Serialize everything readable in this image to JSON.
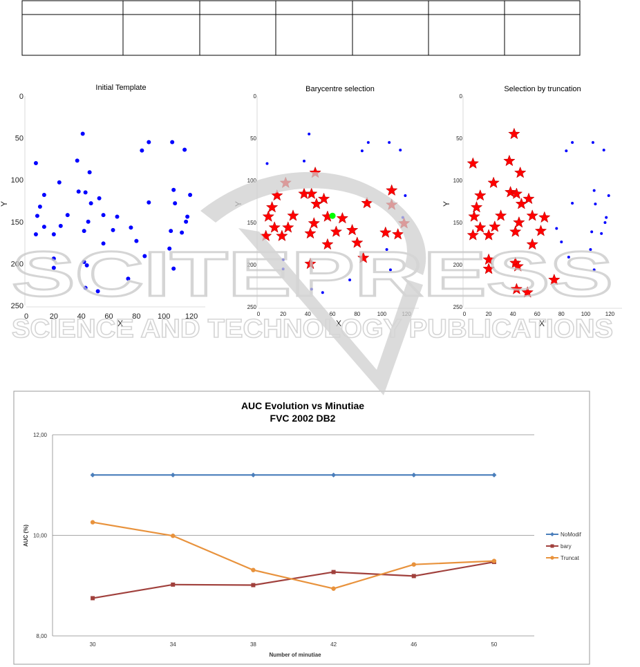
{
  "colors": {
    "blue": "#0000ff",
    "red": "#ff0000",
    "green": "#00ff00",
    "nomodif": "#4a7ebb",
    "bary": "#a0403c",
    "truncat": "#e8923c",
    "grid": "#888888",
    "watermark": "#c8c8c8"
  },
  "watermark": {
    "main": "SCITEPRESS",
    "sub": "SCIENCE AND TECHNOLOGY PUBLICATIONS"
  },
  "top_table": {
    "columns": 7,
    "rows": 2
  },
  "chart_data": [
    {
      "type": "scatter",
      "title": "Initial Template",
      "xlabel": "X",
      "ylabel": "Y",
      "xlim": [
        0,
        130
      ],
      "ylim": [
        0,
        250
      ],
      "y_inverted": true,
      "xticks": [
        0,
        20,
        40,
        60,
        80,
        100,
        120
      ],
      "yticks": [
        0,
        50,
        100,
        150,
        200,
        250
      ],
      "series": [
        {
          "name": "minutiae",
          "marker": "dot",
          "color": "#0000ff",
          "points": [
            [
              7,
              80
            ],
            [
              41,
              45
            ],
            [
              89,
              55
            ],
            [
              106,
              55
            ],
            [
              84,
              65
            ],
            [
              115,
              64
            ],
            [
              37,
              77
            ],
            [
              24,
              103
            ],
            [
              46,
              91
            ],
            [
              107,
              112
            ],
            [
              13,
              118
            ],
            [
              38,
              114
            ],
            [
              43,
              115
            ],
            [
              53,
              122
            ],
            [
              119,
              118
            ],
            [
              10,
              132
            ],
            [
              47,
              128
            ],
            [
              89,
              127
            ],
            [
              108,
              128
            ],
            [
              30,
              142
            ],
            [
              56,
              142
            ],
            [
              66,
              144
            ],
            [
              117,
              144
            ],
            [
              8,
              143
            ],
            [
              25,
              155
            ],
            [
              13,
              156
            ],
            [
              42,
              161
            ],
            [
              45,
              150
            ],
            [
              63,
              160
            ],
            [
              76,
              157
            ],
            [
              116,
              150
            ],
            [
              105,
              161
            ],
            [
              7,
              165
            ],
            [
              20,
              165
            ],
            [
              56,
              176
            ],
            [
              80,
              173
            ],
            [
              113,
              163
            ],
            [
              104,
              182
            ],
            [
              86,
              191
            ],
            [
              20,
              194
            ],
            [
              42,
              198
            ],
            [
              44,
              202
            ],
            [
              20,
              205
            ],
            [
              107,
              206
            ],
            [
              74,
              218
            ],
            [
              43,
              229
            ],
            [
              52,
              233
            ]
          ]
        }
      ]
    },
    {
      "type": "scatter",
      "title": "Barycentre selection",
      "xlabel": "X",
      "ylabel": "Y",
      "xlim": [
        0,
        130
      ],
      "ylim": [
        0,
        250
      ],
      "y_inverted": true,
      "xticks": [
        0,
        20,
        40,
        60,
        80,
        100,
        120
      ],
      "yticks": [
        0,
        50,
        100,
        150,
        200,
        250
      ],
      "series": [
        {
          "name": "selected",
          "marker": "star",
          "color": "#ff0000",
          "points": [
            [
              22,
              103
            ],
            [
              46,
              91
            ],
            [
              37,
              116
            ],
            [
              43,
              116
            ],
            [
              15,
              118
            ],
            [
              53,
              122
            ],
            [
              108,
              112
            ],
            [
              88,
              127
            ],
            [
              108,
              129
            ],
            [
              11,
              132
            ],
            [
              47,
              128
            ],
            [
              8,
              143
            ],
            [
              28,
              142
            ],
            [
              56,
              143
            ],
            [
              68,
              145
            ],
            [
              45,
              151
            ],
            [
              118,
              151
            ],
            [
              13,
              156
            ],
            [
              24,
              156
            ],
            [
              63,
              161
            ],
            [
              76,
              159
            ],
            [
              42,
              163
            ],
            [
              103,
              162
            ],
            [
              113,
              164
            ],
            [
              6,
              166
            ],
            [
              19,
              166
            ],
            [
              56,
              176
            ],
            [
              80,
              174
            ],
            [
              85,
              192
            ],
            [
              42,
              199
            ]
          ]
        },
        {
          "name": "discarded",
          "marker": "dot",
          "color": "#0000ff",
          "points": [
            [
              7,
              80
            ],
            [
              41,
              45
            ],
            [
              89,
              55
            ],
            [
              106,
              55
            ],
            [
              84,
              65
            ],
            [
              115,
              64
            ],
            [
              37,
              77
            ],
            [
              119,
              118
            ],
            [
              117,
              144
            ],
            [
              104,
              182
            ],
            [
              20,
              194
            ],
            [
              20,
              205
            ],
            [
              107,
              206
            ],
            [
              74,
              218
            ],
            [
              43,
              229
            ],
            [
              52,
              233
            ]
          ]
        },
        {
          "name": "barycentre",
          "marker": "dot",
          "color": "#00ff00",
          "points": [
            [
              60,
              142
            ]
          ]
        }
      ]
    },
    {
      "type": "scatter",
      "title": "Selection by truncation",
      "xlabel": "X",
      "ylabel": "Y",
      "xlim": [
        0,
        130
      ],
      "ylim": [
        0,
        250
      ],
      "y_inverted": true,
      "xticks": [
        0,
        20,
        40,
        60,
        80,
        100,
        120
      ],
      "yticks": [
        0,
        50,
        100,
        150,
        200,
        250
      ],
      "series": [
        {
          "name": "selected",
          "marker": "star",
          "color": "#ff0000",
          "points": [
            [
              41,
              45
            ],
            [
              7,
              80
            ],
            [
              37,
              77
            ],
            [
              46,
              91
            ],
            [
              24,
              103
            ],
            [
              13,
              118
            ],
            [
              38,
              114
            ],
            [
              43,
              116
            ],
            [
              53,
              122
            ],
            [
              10,
              132
            ],
            [
              47,
              128
            ],
            [
              30,
              142
            ],
            [
              56,
              142
            ],
            [
              66,
              144
            ],
            [
              8,
              143
            ],
            [
              25,
              155
            ],
            [
              13,
              156
            ],
            [
              42,
              161
            ],
            [
              45,
              150
            ],
            [
              63,
              160
            ],
            [
              7,
              165
            ],
            [
              20,
              165
            ],
            [
              56,
              176
            ],
            [
              20,
              194
            ],
            [
              42,
              198
            ],
            [
              44,
              202
            ],
            [
              20,
              205
            ],
            [
              74,
              218
            ],
            [
              43,
              229
            ],
            [
              52,
              233
            ]
          ]
        },
        {
          "name": "discarded",
          "marker": "dot",
          "color": "#0000ff",
          "points": [
            [
              89,
              55
            ],
            [
              106,
              55
            ],
            [
              84,
              65
            ],
            [
              115,
              64
            ],
            [
              107,
              112
            ],
            [
              119,
              118
            ],
            [
              89,
              127
            ],
            [
              108,
              128
            ],
            [
              117,
              144
            ],
            [
              116,
              150
            ],
            [
              76,
              157
            ],
            [
              105,
              161
            ],
            [
              80,
              173
            ],
            [
              113,
              163
            ],
            [
              104,
              182
            ],
            [
              86,
              191
            ],
            [
              107,
              206
            ]
          ]
        }
      ]
    },
    {
      "type": "line",
      "title": "AUC Evolution vs Minutiae",
      "subtitle": "FVC 2002 DB2",
      "xlabel": "Number of minutiae",
      "ylabel": "AUC (%)",
      "categories": [
        "30",
        "34",
        "38",
        "42",
        "46",
        "50"
      ],
      "ylim": [
        8,
        12
      ],
      "yticks": [
        "8,00",
        "10,00",
        "12,00"
      ],
      "grid": true,
      "legend_position": "right",
      "series": [
        {
          "name": "NoModif",
          "marker": "diamond",
          "color": "#4a7ebb",
          "values": [
            11.2,
            11.2,
            11.2,
            11.2,
            11.2,
            11.2
          ]
        },
        {
          "name": "bary",
          "marker": "square",
          "color": "#a0403c",
          "values": [
            8.75,
            9.02,
            9.01,
            9.27,
            9.19,
            9.47
          ]
        },
        {
          "name": "Truncat",
          "marker": "circle",
          "color": "#e8923c",
          "values": [
            10.26,
            9.99,
            9.31,
            8.94,
            9.42,
            9.49
          ]
        }
      ]
    }
  ]
}
